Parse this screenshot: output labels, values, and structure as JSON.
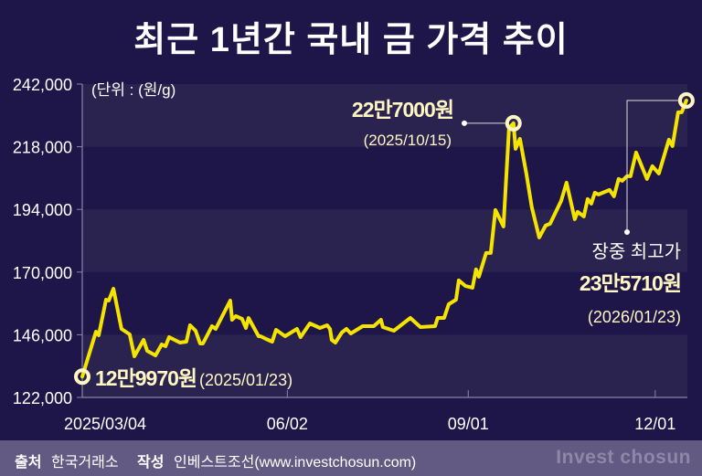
{
  "title": "최근 1년간 국내 금 가격 추이",
  "unit_label": "(단위 : (원/g)",
  "colors": {
    "background": "#1e1649",
    "band": "#2a2350",
    "line": "#f5e400",
    "marker_fill": "#fff6c2",
    "footer": "#625a82",
    "text": "#ffffff",
    "brand": "#8e88a8"
  },
  "chart_data": {
    "type": "line",
    "title": "최근 1년간 국내 금 가격 추이",
    "xlabel": "",
    "ylabel": "(단위 : (원/g)",
    "ylim": [
      122000,
      242000
    ],
    "xlim": [
      0,
      301
    ],
    "grid": "horizontal bands",
    "yticks": [
      122000,
      146000,
      170000,
      194000,
      218000,
      242000
    ],
    "ytick_labels": [
      "122,000",
      "146,000",
      "170,000",
      "194,000",
      "218,000",
      "242,000"
    ],
    "xticks": [
      {
        "label": "2025/03/04",
        "x": 11,
        "tick": false
      },
      {
        "label": "06/02",
        "x": 102,
        "tick": true
      },
      {
        "label": "09/01",
        "x": 192,
        "tick": true
      },
      {
        "label": "12/01",
        "x": 285,
        "tick": true
      }
    ],
    "series": [
      {
        "name": "국내 금 가격",
        "points": [
          [
            0,
            129970
          ],
          [
            6.8,
            147200
          ],
          [
            8.2,
            145800
          ],
          [
            11.8,
            159450
          ],
          [
            13.2,
            159100
          ],
          [
            15.5,
            163650
          ],
          [
            19.5,
            148250
          ],
          [
            23.6,
            146150
          ],
          [
            25.9,
            137750
          ],
          [
            30.5,
            144050
          ],
          [
            32.3,
            139850
          ],
          [
            36.4,
            138100
          ],
          [
            39.5,
            142300
          ],
          [
            41.4,
            141600
          ],
          [
            43.2,
            145100
          ],
          [
            48.6,
            143000
          ],
          [
            51.8,
            143350
          ],
          [
            53.6,
            149650
          ],
          [
            56.4,
            147550
          ],
          [
            58.6,
            142650
          ],
          [
            60,
            142650
          ],
          [
            64.5,
            149300
          ],
          [
            66.4,
            148250
          ],
          [
            73.6,
            159100
          ],
          [
            74.5,
            151750
          ],
          [
            76.4,
            153150
          ],
          [
            79.5,
            152100
          ],
          [
            81.4,
            148600
          ],
          [
            82.7,
            152450
          ],
          [
            87.7,
            145450
          ],
          [
            88.6,
            145450
          ],
          [
            91.4,
            144400
          ],
          [
            94.5,
            143350
          ],
          [
            96.4,
            147900
          ],
          [
            100.9,
            145450
          ],
          [
            106.8,
            148250
          ],
          [
            108.6,
            145100
          ],
          [
            113.2,
            150350
          ],
          [
            118.2,
            148600
          ],
          [
            121.8,
            149650
          ],
          [
            123.2,
            148250
          ],
          [
            124.1,
            144050
          ],
          [
            125.9,
            143000
          ],
          [
            129.1,
            146850
          ],
          [
            131.4,
            148250
          ],
          [
            133.6,
            146500
          ],
          [
            139.5,
            149300
          ],
          [
            145,
            149300
          ],
          [
            148.6,
            151750
          ],
          [
            149.5,
            148950
          ],
          [
            155,
            147550
          ],
          [
            163.2,
            152450
          ],
          [
            168.2,
            148950
          ],
          [
            175.5,
            149300
          ],
          [
            176.8,
            152450
          ],
          [
            180,
            152450
          ],
          [
            182.3,
            157700
          ],
          [
            185.9,
            159450
          ],
          [
            187.3,
            166800
          ],
          [
            190.5,
            164700
          ],
          [
            194.1,
            164000
          ],
          [
            195.9,
            171000
          ],
          [
            197.3,
            168200
          ],
          [
            200.9,
            177300
          ],
          [
            203.2,
            177300
          ],
          [
            205.5,
            193750
          ],
          [
            209.5,
            187450
          ],
          [
            212.3,
            225250
          ],
          [
            214.5,
            227000
          ],
          [
            215.5,
            217200
          ],
          [
            217.7,
            221050
          ],
          [
            220.9,
            207750
          ],
          [
            223.6,
            194800
          ],
          [
            227.3,
            183250
          ],
          [
            230.5,
            187800
          ],
          [
            232.7,
            188500
          ],
          [
            238.2,
            197250
          ],
          [
            240.9,
            204250
          ],
          [
            245,
            190250
          ],
          [
            246.4,
            193050
          ],
          [
            249.5,
            191300
          ],
          [
            251.4,
            197950
          ],
          [
            253.2,
            196200
          ],
          [
            255,
            200400
          ],
          [
            256.8,
            199700
          ],
          [
            262.3,
            201450
          ],
          [
            264.5,
            199000
          ],
          [
            266.8,
            205650
          ],
          [
            268.6,
            204950
          ],
          [
            270.9,
            206700
          ],
          [
            272.7,
            206700
          ],
          [
            275.5,
            215800
          ],
          [
            280.9,
            205650
          ],
          [
            283.6,
            210550
          ],
          [
            286.8,
            207750
          ],
          [
            291.8,
            220700
          ],
          [
            293.6,
            218250
          ],
          [
            296.4,
            231200
          ],
          [
            298.2,
            231200
          ],
          [
            300.5,
            235710
          ]
        ]
      }
    ],
    "annotations": [
      {
        "id": "start",
        "x": 0,
        "y": 129970,
        "value_label": "12만9970원",
        "date_label": "(2025/01/23)"
      },
      {
        "id": "peak",
        "x": 214.5,
        "y": 227000,
        "value_label": "22만7000원",
        "date_label": "(2025/10/15)"
      },
      {
        "id": "high",
        "x": 300.5,
        "y": 235710,
        "caption": "장중 최고가",
        "value_label": "23만5710원",
        "date_label": "(2026/01/23)"
      }
    ]
  },
  "footer": {
    "source_label": "출처",
    "source_value": "한국거래소",
    "author_label": "작성",
    "author_value": "인베스트조선(www.investchosun.com)",
    "brand": "Invest chosun"
  }
}
